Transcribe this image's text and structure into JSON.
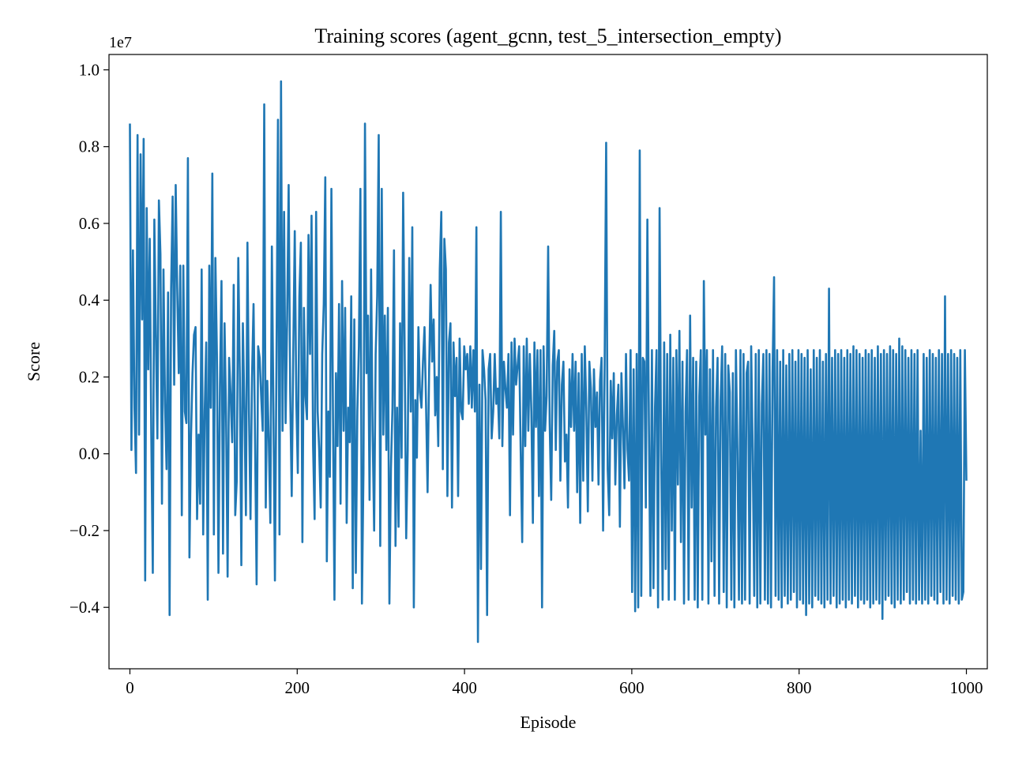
{
  "chart_data": {
    "type": "line",
    "title": "Training scores (agent_gcnn, test_5_intersection_empty)",
    "xlabel": "Episode",
    "ylabel": "Score",
    "y_offset_label": "1e7",
    "xlim": [
      -25,
      1025
    ],
    "ylim": [
      -0.56,
      1.04
    ],
    "x_ticks": [
      0,
      200,
      400,
      600,
      800,
      1000
    ],
    "x_tick_labels": [
      "0",
      "200",
      "400",
      "600",
      "800",
      "1000"
    ],
    "y_ticks": [
      -0.4,
      -0.2,
      0.0,
      0.2,
      0.4,
      0.6,
      0.8,
      1.0
    ],
    "y_tick_labels": [
      "−0.4",
      "−0.2",
      "0.0",
      "0.2",
      "0.4",
      "0.6",
      "0.8",
      "1.0"
    ],
    "grid": false,
    "series_color": "#1f77b4",
    "series": [
      {
        "x_start": 0,
        "x_step": 1,
        "values": [
          0.86,
          0.01,
          0.53,
          0.12,
          -0.05,
          0.83,
          0.05,
          0.78,
          0.35,
          0.82,
          -0.33,
          0.64,
          0.22,
          0.56,
          0.05,
          -0.31,
          0.61,
          0.31,
          0.04,
          0.66,
          0.52,
          -0.13,
          0.48,
          0.13,
          -0.04,
          0.42,
          -0.42,
          0.43,
          0.67,
          0.18,
          0.7,
          0.43,
          0.21,
          0.49,
          -0.16,
          0.49,
          0.11,
          0.08,
          0.77,
          -0.27,
          0.04,
          0.21,
          0.31,
          0.33,
          -0.17,
          0.05,
          -0.13,
          0.48,
          -0.21,
          0.11,
          0.29,
          -0.38,
          0.49,
          0.12,
          0.73,
          -0.21,
          0.51,
          0.26,
          -0.31,
          0.18,
          0.45,
          -0.26,
          0.34,
          0.1,
          -0.32,
          0.25,
          0.15,
          0.03,
          0.44,
          -0.16,
          -0.07,
          0.51,
          0.21,
          -0.29,
          0.34,
          0.12,
          -0.16,
          0.55,
          0.11,
          -0.17,
          0.2,
          0.39,
          0.03,
          -0.34,
          0.28,
          0.25,
          0.15,
          0.06,
          0.91,
          -0.14,
          0.19,
          0.03,
          -0.18,
          0.54,
          0.12,
          -0.33,
          0.23,
          0.87,
          -0.21,
          0.97,
          0.06,
          0.63,
          0.08,
          0.35,
          0.7,
          0.16,
          -0.11,
          0.26,
          0.58,
          0.14,
          -0.05,
          0.41,
          0.55,
          -0.23,
          0.38,
          0.15,
          0.09,
          0.57,
          0.26,
          0.62,
          0.02,
          -0.17,
          0.63,
          0.11,
          0.01,
          -0.14,
          0.26,
          0.39,
          0.72,
          -0.28,
          0.11,
          -0.06,
          0.69,
          0.12,
          -0.38,
          0.21,
          0.02,
          0.39,
          -0.13,
          0.45,
          0.06,
          0.38,
          -0.18,
          0.12,
          0.03,
          0.41,
          -0.35,
          0.35,
          -0.31,
          0.11,
          0.28,
          0.69,
          -0.39,
          -0.05,
          0.86,
          0.21,
          0.36,
          -0.12,
          0.48,
          0.06,
          -0.2,
          0.26,
          0.41,
          0.83,
          -0.24,
          0.69,
          0.05,
          0.36,
          0.01,
          0.38,
          -0.39,
          -0.04,
          0.12,
          0.53,
          -0.24,
          0.12,
          -0.19,
          0.34,
          -0.01,
          0.68,
          0.27,
          -0.22,
          0.01,
          0.51,
          0.11,
          0.59,
          -0.4,
          0.14,
          -0.01,
          0.33,
          0.16,
          0.12,
          0.24,
          0.33,
          0.13,
          -0.1,
          0.21,
          0.44,
          0.24,
          0.35,
          0.1,
          0.2,
          0.02,
          0.48,
          0.63,
          -0.04,
          0.56,
          0.48,
          -0.11,
          0.29,
          0.34,
          -0.14,
          0.29,
          0.15,
          0.25,
          -0.11,
          0.3,
          0.11,
          0.09,
          0.28,
          0.22,
          0.26,
          0.13,
          0.28,
          0.12,
          0.27,
          0.11,
          0.59,
          -0.49,
          0.18,
          -0.3,
          0.27,
          0.22,
          0.14,
          -0.42,
          0.22,
          0.26,
          0.04,
          0.11,
          0.26,
          0.13,
          0.17,
          0.04,
          0.63,
          0.02,
          0.24,
          0.17,
          0.12,
          0.26,
          -0.16,
          0.29,
          0.05,
          0.3,
          0.18,
          0.23,
          0.28,
          0.01,
          -0.23,
          0.28,
          0.02,
          0.3,
          0.06,
          0.26,
          0.11,
          -0.18,
          0.29,
          0.07,
          0.27,
          -0.11,
          0.27,
          -0.4,
          0.28,
          0.06,
          0.15,
          0.54,
          0.08,
          -0.12,
          0.23,
          0.32,
          0.01,
          0.24,
          0.27,
          -0.07,
          0.18,
          0.24,
          -0.02,
          0.05,
          -0.14,
          0.22,
          0.07,
          0.26,
          0.06,
          0.24,
          -0.1,
          0.21,
          -0.18,
          0.26,
          -0.07,
          0.28,
          0.12,
          -0.15,
          0.24,
          0.17,
          -0.07,
          0.22,
          0.07,
          0.16,
          -0.08,
          0.19,
          0.25,
          -0.2,
          0.23,
          0.81,
          -0.04,
          -0.16,
          0.19,
          0.04,
          0.21,
          -0.08,
          0.1,
          0.18,
          -0.19,
          0.21,
          0.07,
          -0.09,
          0.26,
          0.01,
          -0.07,
          0.27,
          -0.36,
          0.22,
          -0.41,
          0.26,
          -0.4,
          0.79,
          -0.37,
          0.25,
          0.24,
          -0.14,
          0.61,
          0.08,
          -0.37,
          0.27,
          -0.35,
          0.12,
          0.27,
          -0.4,
          0.64,
          0.01,
          -0.38,
          0.29,
          -0.3,
          0.26,
          -0.38,
          0.31,
          -0.2,
          0.25,
          -0.38,
          0.27,
          -0.08,
          0.32,
          -0.23,
          0.24,
          -0.39,
          0.11,
          0.27,
          -0.38,
          0.36,
          -0.14,
          0.25,
          -0.38,
          0.24,
          -0.4,
          0.15,
          0.27,
          -0.38,
          0.45,
          0.05,
          0.27,
          -0.39,
          0.22,
          -0.28,
          0.27,
          -0.37,
          0.12,
          0.25,
          -0.39,
          0.14,
          0.28,
          -0.36,
          0.26,
          -0.4,
          0.23,
          0.16,
          -0.38,
          0.21,
          -0.4,
          0.27,
          0.01,
          -0.38,
          0.27,
          -0.39,
          0.26,
          -0.38,
          0.21,
          0.24,
          -0.39,
          0.28,
          0.01,
          -0.37,
          0.26,
          -0.4,
          0.27,
          -0.39,
          0.13,
          0.26,
          -0.38,
          0.27,
          -0.39,
          0.26,
          -0.4,
          0.21,
          0.46,
          -0.37,
          0.27,
          -0.38,
          0.24,
          -0.4,
          0.27,
          -0.37,
          0.23,
          -0.39,
          0.26,
          -0.38,
          0.27,
          -0.36,
          0.24,
          -0.4,
          0.27,
          -0.38,
          0.26,
          -0.39,
          0.25,
          -0.42,
          0.27,
          -0.39,
          0.22,
          -0.4,
          0.27,
          -0.37,
          0.25,
          -0.38,
          0.27,
          -0.39,
          0.24,
          -0.4,
          0.26,
          -0.38,
          0.43,
          -0.39,
          0.25,
          -0.37,
          0.27,
          -0.4,
          0.26,
          -0.39,
          0.27,
          -0.38,
          0.25,
          -0.4,
          0.27,
          -0.38,
          0.26,
          -0.39,
          0.28,
          -0.37,
          0.27,
          -0.4,
          0.26,
          -0.38,
          0.25,
          -0.39,
          0.27,
          -0.38,
          0.26,
          -0.4,
          0.27,
          -0.39,
          0.25,
          -0.38,
          0.28,
          -0.39,
          0.26,
          -0.43,
          0.27,
          -0.38,
          0.26,
          -0.37,
          0.28,
          -0.39,
          0.27,
          -0.4,
          0.26,
          -0.38,
          0.3,
          -0.39,
          0.28,
          -0.38,
          0.27,
          -0.36,
          0.25,
          -0.39,
          0.27,
          -0.38,
          0.26,
          -0.39,
          0.27,
          -0.38,
          0.06,
          -0.39,
          0.26,
          -0.38,
          0.25,
          -0.39,
          0.27,
          -0.37,
          0.26,
          -0.38,
          0.25,
          -0.39,
          0.27,
          -0.36,
          0.26,
          -0.39,
          0.41,
          -0.38,
          0.26,
          -0.39,
          0.27,
          -0.37,
          0.26,
          -0.38,
          0.25,
          -0.39,
          0.27,
          -0.38,
          -0.36,
          0.27,
          -0.07
        ]
      }
    ]
  }
}
